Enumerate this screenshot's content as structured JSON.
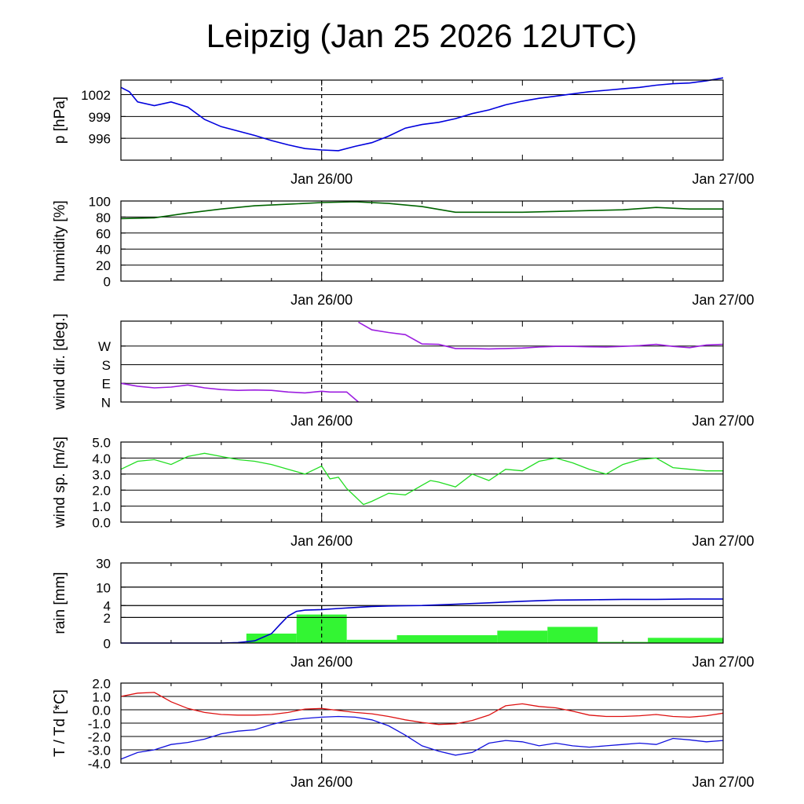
{
  "title": "Leipzig (Jan 25 2026 12UTC)",
  "time_labels": [
    "Jan 26/00",
    "Jan 27/00"
  ],
  "colors": {
    "pressure": "#0000dd",
    "humidity": "#006400",
    "wind_dir": "#9c1ee0",
    "wind_speed": "#22dd22",
    "rain_bar": "#33f533",
    "rain_cum": "#0000cc",
    "temperature": "#dd1111",
    "dewpoint": "#1111dd"
  },
  "chart_data": [
    {
      "type": "line",
      "name": "pressure",
      "ylabel": "p [hPa]",
      "ylim": [
        993,
        1004
      ],
      "yticks": [
        996,
        999,
        1002
      ],
      "ytick_labels": [
        "996",
        "999",
        "1002"
      ],
      "x": [
        0,
        0.5,
        1,
        2,
        3,
        4,
        5,
        6,
        7,
        8,
        9,
        10,
        11,
        12,
        13,
        14,
        15,
        16,
        17,
        18,
        19,
        20,
        21,
        22,
        23,
        24,
        25,
        26,
        27,
        28,
        29,
        30,
        31,
        32,
        33,
        34,
        35,
        36
      ],
      "values": [
        1003.0,
        1002.4,
        1001.0,
        1000.5,
        1001.0,
        1000.3,
        998.6,
        997.6,
        997.0,
        996.4,
        995.7,
        995.1,
        994.6,
        994.4,
        994.3,
        994.9,
        995.4,
        996.3,
        997.4,
        997.9,
        998.2,
        998.7,
        999.4,
        999.9,
        1000.6,
        1001.1,
        1001.5,
        1001.8,
        1002.1,
        1002.4,
        1002.6,
        1002.8,
        1003.0,
        1003.3,
        1003.5,
        1003.6,
        1003.9,
        1004.3
      ]
    },
    {
      "type": "line",
      "name": "humidity",
      "ylabel": "humidity [%]",
      "ylim": [
        0,
        100
      ],
      "yticks": [
        0,
        20,
        40,
        60,
        80,
        100
      ],
      "ytick_labels": [
        "0",
        "20",
        "40",
        "60",
        "80",
        "100"
      ],
      "x": [
        0,
        2,
        4,
        6,
        8,
        10,
        12,
        14,
        16,
        18,
        20,
        22,
        24,
        26,
        28,
        30,
        32,
        34,
        36
      ],
      "values": [
        78,
        79,
        85,
        90,
        94,
        96,
        98,
        99,
        97,
        93,
        86,
        86,
        86,
        87,
        88,
        89,
        92,
        90,
        90
      ]
    },
    {
      "type": "line",
      "name": "wind_direction",
      "ylabel": "wind dir. [deg.]",
      "ylim": [
        0,
        390
      ],
      "yticks": [
        0,
        90,
        180,
        270
      ],
      "ytick_labels": [
        "N",
        "E",
        "S",
        "W"
      ],
      "segments": [
        {
          "x": [
            0,
            1,
            2,
            3,
            4,
            5,
            6,
            7,
            8,
            9,
            10,
            11,
            12,
            12.5,
            13.5,
            14.2
          ],
          "values": [
            90,
            76,
            68,
            72,
            82,
            68,
            60,
            56,
            58,
            56,
            48,
            44,
            52,
            48,
            48,
            0
          ]
        },
        {
          "x": [
            14.2,
            15,
            16,
            17,
            18,
            19,
            20,
            21,
            22,
            23,
            24,
            25,
            26,
            27,
            28,
            29,
            30,
            31,
            32,
            33,
            34,
            35,
            36
          ],
          "values": [
            385,
            348,
            335,
            325,
            280,
            278,
            258,
            258,
            256,
            258,
            260,
            265,
            268,
            268,
            266,
            265,
            268,
            272,
            278,
            268,
            262,
            275,
            278
          ]
        }
      ]
    },
    {
      "type": "line",
      "name": "wind_speed",
      "ylabel": "wind sp. [m/s]",
      "ylim": [
        0,
        5
      ],
      "yticks": [
        0,
        1,
        2,
        3,
        4,
        5
      ],
      "ytick_labels": [
        "0.0",
        "1.0",
        "2.0",
        "3.0",
        "4.0",
        "5.0"
      ],
      "x": [
        0,
        1,
        2,
        3,
        4,
        5,
        6,
        7,
        8,
        9,
        10,
        11,
        12,
        12.5,
        13,
        13.5,
        14,
        14.5,
        15,
        16,
        17,
        18,
        18.5,
        19,
        20,
        21,
        22,
        23,
        24,
        25,
        26,
        27,
        28,
        29,
        30,
        31,
        32,
        33,
        34,
        35,
        36
      ],
      "values": [
        3.3,
        3.8,
        3.9,
        3.6,
        4.1,
        4.3,
        4.1,
        3.9,
        3.8,
        3.6,
        3.3,
        3.0,
        3.5,
        2.7,
        2.8,
        2.1,
        1.6,
        1.1,
        1.3,
        1.8,
        1.7,
        2.3,
        2.6,
        2.5,
        2.2,
        3.0,
        2.6,
        3.3,
        3.2,
        3.8,
        4.0,
        3.7,
        3.3,
        3.0,
        3.6,
        3.9,
        4.0,
        3.4,
        3.3,
        3.2,
        3.2
      ]
    },
    {
      "type": "bar",
      "name": "rain",
      "ylabel": "rain [mm]",
      "scale": "log",
      "yticks": [
        0,
        2,
        4,
        10,
        30
      ],
      "ytick_labels": [
        "0",
        "2",
        "4",
        "10",
        "30"
      ],
      "bars": [
        {
          "x0": 7.5,
          "x1": 10.5,
          "value": 0.5
        },
        {
          "x0": 10.5,
          "x1": 13.5,
          "value": 2.4
        },
        {
          "x0": 13.5,
          "x1": 16.5,
          "value": 0.15
        },
        {
          "x0": 16.5,
          "x1": 22.5,
          "value": 0.4
        },
        {
          "x0": 22.5,
          "x1": 25.5,
          "value": 0.7
        },
        {
          "x0": 25.5,
          "x1": 28.5,
          "value": 1.0
        },
        {
          "x0": 28.5,
          "x1": 31.5,
          "value": 0.05
        },
        {
          "x0": 31.5,
          "x1": 36,
          "value": 0.25
        }
      ],
      "cumulative": {
        "x": [
          0,
          6,
          7,
          8,
          9,
          9.5,
          10,
          10.5,
          11,
          12,
          13,
          14,
          15,
          16,
          18,
          20,
          22,
          24,
          26,
          28,
          30,
          32,
          34,
          36
        ],
        "values": [
          0,
          0,
          0.02,
          0.1,
          0.5,
          1.2,
          2.2,
          2.9,
          3.1,
          3.2,
          3.4,
          3.6,
          3.8,
          3.9,
          4.0,
          4.3,
          4.6,
          5.0,
          5.3,
          5.4,
          5.5,
          5.5,
          5.6,
          5.6
        ]
      }
    },
    {
      "type": "line",
      "name": "temperature_dewpoint",
      "ylabel": "T / Td [*C]",
      "ylim": [
        -4,
        2
      ],
      "yticks": [
        -4,
        -3,
        -2,
        -1,
        0,
        1,
        2
      ],
      "ytick_labels": [
        "-4.0",
        "-3.0",
        "-2.0",
        "-1.0",
        "0.0",
        "1.0",
        "2.0"
      ],
      "series": [
        {
          "name": "T",
          "x": [
            0,
            1,
            2,
            3,
            4,
            5,
            6,
            7,
            8,
            9,
            10,
            11,
            12,
            13,
            14,
            15,
            16,
            17,
            18,
            19,
            20,
            21,
            22,
            23,
            24,
            25,
            26,
            27,
            28,
            29,
            30,
            31,
            32,
            33,
            34,
            35,
            36
          ],
          "values": [
            1.0,
            1.25,
            1.3,
            0.6,
            0.1,
            -0.2,
            -0.35,
            -0.4,
            -0.4,
            -0.35,
            -0.2,
            0.05,
            0.1,
            -0.05,
            -0.2,
            -0.3,
            -0.5,
            -0.75,
            -0.95,
            -1.1,
            -1.05,
            -0.8,
            -0.4,
            0.3,
            0.45,
            0.25,
            0.15,
            -0.1,
            -0.4,
            -0.5,
            -0.5,
            -0.45,
            -0.35,
            -0.5,
            -0.55,
            -0.45,
            -0.25
          ]
        },
        {
          "name": "Td",
          "x": [
            0,
            1,
            2,
            3,
            4,
            5,
            6,
            7,
            8,
            9,
            10,
            11,
            12,
            13,
            14,
            15,
            16,
            17,
            18,
            19,
            20,
            21,
            22,
            23,
            24,
            25,
            26,
            27,
            28,
            29,
            30,
            31,
            32,
            33,
            34,
            35,
            36
          ],
          "values": [
            -3.7,
            -3.2,
            -3.0,
            -2.6,
            -2.45,
            -2.2,
            -1.8,
            -1.6,
            -1.5,
            -1.1,
            -0.8,
            -0.65,
            -0.55,
            -0.5,
            -0.55,
            -0.75,
            -1.2,
            -1.9,
            -2.7,
            -3.1,
            -3.4,
            -3.2,
            -2.5,
            -2.3,
            -2.4,
            -2.7,
            -2.5,
            -2.7,
            -2.8,
            -2.7,
            -2.6,
            -2.5,
            -2.6,
            -2.15,
            -2.25,
            -2.4,
            -2.3
          ]
        }
      ]
    }
  ]
}
